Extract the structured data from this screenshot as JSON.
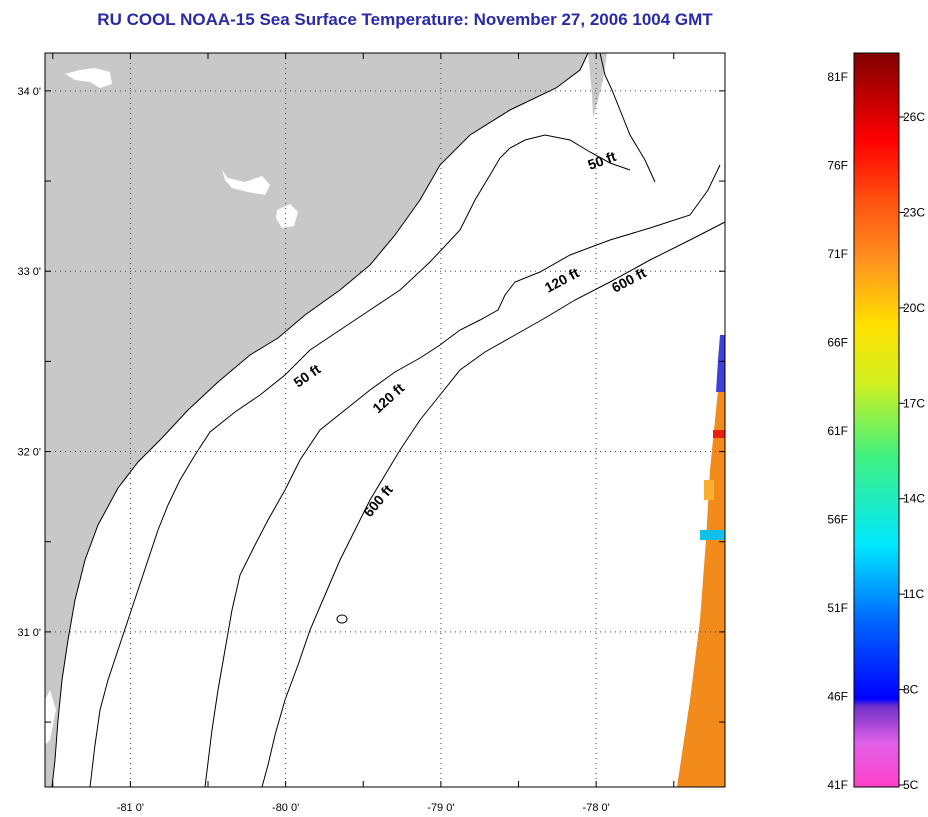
{
  "title": "RU COOL  NOAA-15  Sea Surface Temperature:  November 27, 2006 1004 GMT",
  "map": {
    "lon_range": [
      -81.55,
      -77.17
    ],
    "lat_range": [
      30.14,
      34.21
    ],
    "lon_ticks": [
      {
        "value": -81,
        "label": "-81 0'"
      },
      {
        "value": -80,
        "label": "-80 0'"
      },
      {
        "value": -79,
        "label": "-79 0'"
      },
      {
        "value": -78,
        "label": "-78 0'"
      }
    ],
    "lat_ticks": [
      {
        "value": 34,
        "label": "34 0'"
      },
      {
        "value": 33,
        "label": "33 0'"
      },
      {
        "value": 32,
        "label": "32 0'"
      },
      {
        "value": 31,
        "label": "31 0'"
      }
    ],
    "grid": "dotted",
    "land_color": "#c8c8c8",
    "water_color": "#ffffff",
    "contour_labels": [
      {
        "text": "50 ft"
      },
      {
        "text": "120 ft"
      },
      {
        "text": "600 ft"
      },
      {
        "text": "50 ft"
      },
      {
        "text": "120 ft"
      },
      {
        "text": "600 ft"
      }
    ]
  },
  "colorbar": {
    "fahrenheit_labels": [
      "81F",
      "76F",
      "71F",
      "66F",
      "61F",
      "56F",
      "51F",
      "46F",
      "41F"
    ],
    "celsius_labels": [
      "26C",
      "23C",
      "20C",
      "17C",
      "14C",
      "11C",
      "8C",
      "5C"
    ]
  }
}
